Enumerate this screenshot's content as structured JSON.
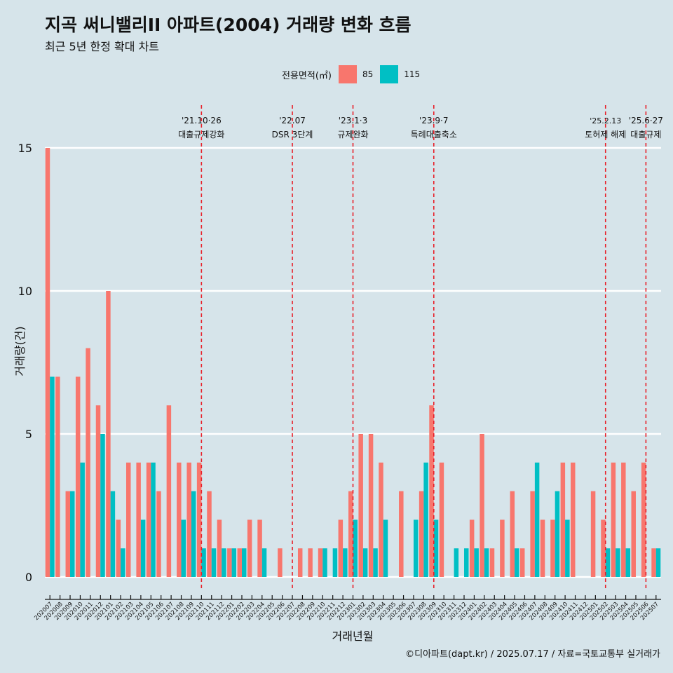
{
  "title": "지곡 써니밸리II 아파트(2004) 거래량 변화 흐름",
  "subtitle": "최근 5년 한정 확대 차트",
  "caption": "©디아파트(dapt.kr) / 2025.07.17 / 자료=국토교통부 실거래가",
  "legend": {
    "title": "전용면적(㎡)",
    "items": [
      {
        "label": "85",
        "color": "#f8766d"
      },
      {
        "label": "115",
        "color": "#00bfc4"
      }
    ]
  },
  "chart_data": {
    "type": "bar",
    "xlabel": "거래년월",
    "ylabel": "거래량(건)",
    "ylim": [
      0,
      15
    ],
    "yticks": [
      0,
      5,
      10,
      15
    ],
    "grid": true,
    "legend_position": "top",
    "categories": [
      "202007",
      "202008",
      "202009",
      "202010",
      "202011",
      "202012",
      "202101",
      "202102",
      "202103",
      "202104",
      "202105",
      "202106",
      "202107",
      "202108",
      "202109",
      "202110",
      "202111",
      "202112",
      "202201",
      "202202",
      "202203",
      "202204",
      "202205",
      "202206",
      "202207",
      "202208",
      "202209",
      "202210",
      "202211",
      "202212",
      "202301",
      "202302",
      "202303",
      "202304",
      "202305",
      "202306",
      "202307",
      "202308",
      "202309",
      "202310",
      "202311",
      "202312",
      "202401",
      "202402",
      "202403",
      "202404",
      "202405",
      "202406",
      "202407",
      "202408",
      "202409",
      "202410",
      "202411",
      "202412",
      "202501",
      "202502",
      "202503",
      "202504",
      "202505",
      "202506",
      "202507"
    ],
    "series": [
      {
        "name": "85",
        "color": "#f8766d",
        "values": [
          15,
          7,
          3,
          7,
          8,
          6,
          10,
          2,
          4,
          4,
          4,
          3,
          6,
          4,
          4,
          4,
          3,
          2,
          1,
          1,
          2,
          2,
          0,
          1,
          0,
          1,
          1,
          1,
          0,
          2,
          3,
          5,
          5,
          4,
          0,
          3,
          0,
          3,
          6,
          4,
          0,
          0,
          2,
          5,
          1,
          2,
          3,
          1,
          3,
          2,
          2,
          4,
          4,
          0,
          3,
          2,
          4,
          4,
          3,
          4,
          1
        ]
      },
      {
        "name": "115",
        "color": "#00bfc4",
        "values": [
          7,
          0,
          3,
          4,
          0,
          5,
          3,
          1,
          0,
          2,
          4,
          0,
          0,
          2,
          3,
          1,
          1,
          1,
          1,
          1,
          0,
          1,
          0,
          0,
          0,
          0,
          0,
          1,
          1,
          1,
          2,
          1,
          1,
          2,
          0,
          0,
          2,
          4,
          2,
          0,
          1,
          1,
          1,
          1,
          0,
          0,
          1,
          0,
          4,
          0,
          3,
          2,
          0,
          0,
          0,
          1,
          1,
          1,
          0,
          0,
          1
        ]
      }
    ],
    "annotations": [
      {
        "date": "'21.10·26",
        "label": "대출규제강화",
        "at": "202110"
      },
      {
        "date": "'22.07",
        "label": "DSR 3단계",
        "at": "202207"
      },
      {
        "date": "'23.1·3",
        "label": "규제완화",
        "at": "202301"
      },
      {
        "date": "'23.9·7",
        "label": "특례대출축소",
        "at": "202309"
      },
      {
        "date": "'25.2.13",
        "label": "토허제 해제",
        "at": "202502"
      },
      {
        "date": "'25.6·27",
        "label": "대출규제",
        "at": "202506"
      }
    ],
    "annotation_color": "#e8202a"
  }
}
